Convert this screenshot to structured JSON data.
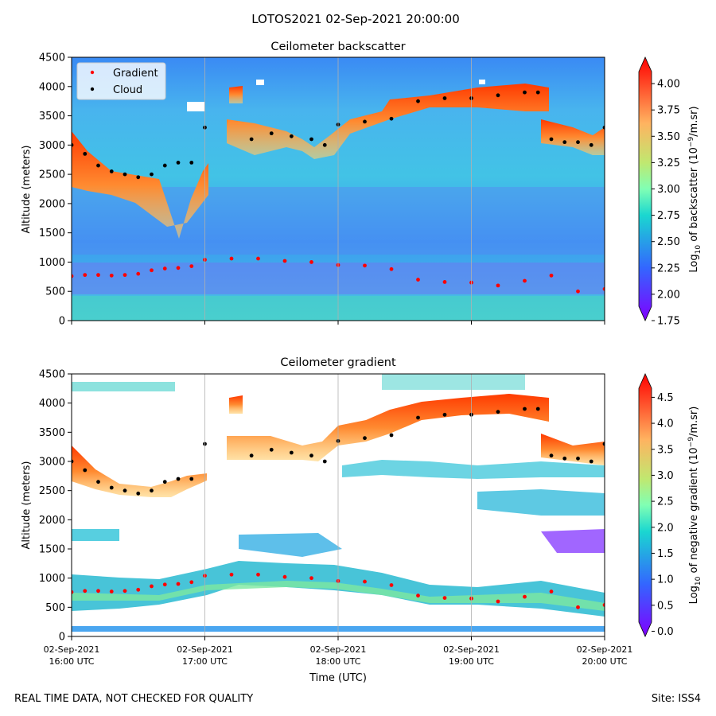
{
  "figure": {
    "suptitle": "LOTOS2021 02-Sep-2021 20:00:00",
    "footer_left": "REAL TIME DATA, NOT CHECKED FOR QUALITY",
    "footer_right": "Site: ISS4"
  },
  "chart_data": [
    {
      "type": "heatmap",
      "title": "Ceilometer backscatter",
      "ylabel": "Altitude (meters)",
      "xlabel": "",
      "x_tick_labels": [],
      "ylim": [
        0,
        4500
      ],
      "y_ticks": [
        0,
        500,
        1000,
        1500,
        2000,
        2500,
        3000,
        3500,
        4000,
        4500
      ],
      "grid": "vertical lines at x ticks",
      "legend": {
        "placement": "top-left",
        "entries": [
          {
            "name": "Gradient",
            "color": "#ff0000"
          },
          {
            "name": "Cloud",
            "color": "#000000"
          }
        ]
      },
      "colorbar": {
        "label": "Log10 of backscatter (10^-9/m.sr)",
        "label_main": "Log",
        "label_sub": "10",
        "label_mid": " of backscatter (10",
        "label_sup": "−9",
        "label_end": "/m.sr)",
        "range": [
          1.75,
          4.25
        ],
        "ticks": [
          "1.75",
          "2.00",
          "2.25",
          "2.50",
          "2.75",
          "3.00",
          "3.25",
          "3.50",
          "3.75",
          "4.00"
        ],
        "colormap": "rainbow"
      },
      "series": [
        {
          "name": "Cloud",
          "x_hours_utc": [
            16.0,
            16.1,
            16.2,
            16.3,
            16.4,
            16.5,
            16.6,
            16.7,
            16.8,
            16.9,
            17.0,
            17.35,
            17.5,
            17.65,
            17.8,
            17.9,
            18.0,
            18.2,
            18.4,
            18.6,
            18.8,
            19.0,
            19.2,
            19.4,
            19.5,
            19.6,
            19.7,
            19.8,
            19.9,
            20.0
          ],
          "y": [
            3000,
            2850,
            2650,
            2550,
            2500,
            2450,
            2500,
            2650,
            2700,
            2700,
            3300,
            3100,
            3200,
            3150,
            3100,
            3000,
            3350,
            3400,
            3450,
            3750,
            3800,
            3800,
            3850,
            3900,
            3900,
            3100,
            3050,
            3050,
            3000,
            3300
          ]
        },
        {
          "name": "Gradient",
          "x_hours_utc": [
            16.0,
            16.1,
            16.2,
            16.3,
            16.4,
            16.5,
            16.6,
            16.7,
            16.8,
            16.9,
            17.0,
            17.2,
            17.4,
            17.6,
            17.8,
            18.0,
            18.2,
            18.4,
            18.6,
            18.8,
            19.0,
            19.2,
            19.4,
            19.6,
            19.8,
            20.0
          ],
          "y": [
            760,
            780,
            780,
            770,
            780,
            800,
            860,
            890,
            900,
            930,
            1040,
            1060,
            1060,
            1020,
            1000,
            950,
            940,
            880,
            700,
            660,
            650,
            600,
            680,
            770,
            500,
            540
          ]
        }
      ]
    },
    {
      "type": "heatmap",
      "title": "Ceilometer gradient",
      "ylabel": "Altitude (meters)",
      "xlabel": "Time (UTC)",
      "x_tick_labels": [
        {
          "date": "02-Sep-2021",
          "time": "16:00 UTC"
        },
        {
          "date": "02-Sep-2021",
          "time": "17:00 UTC"
        },
        {
          "date": "02-Sep-2021",
          "time": "18:00 UTC"
        },
        {
          "date": "02-Sep-2021",
          "time": "19:00 UTC"
        },
        {
          "date": "02-Sep-2021",
          "time": "20:00 UTC"
        }
      ],
      "ylim": [
        0,
        4500
      ],
      "y_ticks": [
        0,
        500,
        1000,
        1500,
        2000,
        2500,
        3000,
        3500,
        4000,
        4500
      ],
      "grid": "vertical lines at x ticks",
      "colorbar": {
        "label": "Log10 of negative gradient (10^-9/m.sr)",
        "label_main": "Log",
        "label_sub": "10",
        "label_mid": " of negative gradient (10",
        "label_sup": "−9",
        "label_end": "/m.sr)",
        "range": [
          -0.1,
          4.95
        ],
        "ticks": [
          "0.0",
          "0.5",
          "1.0",
          "1.5",
          "2.0",
          "2.5",
          "3.0",
          "3.5",
          "4.0",
          "4.5"
        ],
        "colormap": "rainbow"
      }
    }
  ]
}
